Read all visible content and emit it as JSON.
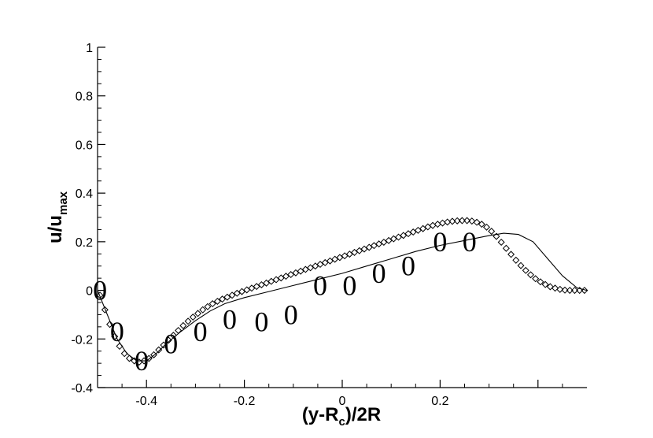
{
  "chart_data": {
    "type": "line",
    "title": "",
    "xlabel": {
      "main": "(y-R",
      "sub": "c",
      "tail": ")/2R"
    },
    "ylabel": {
      "main": "u/u",
      "sub": "max"
    },
    "xlim": [
      -0.5,
      0.5
    ],
    "ylim": [
      -0.4,
      1.0
    ],
    "x_ticks": [
      -0.4,
      -0.2,
      0,
      0.2,
      0.4
    ],
    "x_tick_labels": [
      "-0.4",
      "-0.2",
      "0",
      "0.2",
      ""
    ],
    "y_ticks": [
      -0.4,
      -0.2,
      0,
      0.2,
      0.4,
      0.6,
      0.8,
      1.0
    ],
    "y_tick_labels": [
      "-0.4",
      "-0.2",
      "0",
      "0.2",
      "0.4",
      "0.6",
      "0.8",
      "1"
    ],
    "grid": false,
    "legend": "none",
    "series": [
      {
        "style": "solid-line",
        "color": "#000000",
        "x": [
          -0.5,
          -0.48,
          -0.46,
          -0.44,
          -0.42,
          -0.4,
          -0.38,
          -0.36,
          -0.33,
          -0.3,
          -0.27,
          -0.24,
          -0.2,
          -0.15,
          -0.1,
          -0.05,
          0.0,
          0.05,
          0.1,
          0.15,
          0.2,
          0.25,
          0.3,
          0.33,
          0.36,
          0.39,
          0.42,
          0.45,
          0.48,
          0.5
        ],
        "y": [
          0.0,
          -0.1,
          -0.2,
          -0.26,
          -0.29,
          -0.29,
          -0.26,
          -0.22,
          -0.17,
          -0.125,
          -0.085,
          -0.055,
          -0.03,
          -0.005,
          0.02,
          0.045,
          0.07,
          0.1,
          0.13,
          0.16,
          0.185,
          0.205,
          0.225,
          0.235,
          0.23,
          0.2,
          0.13,
          0.06,
          0.01,
          0.0
        ]
      },
      {
        "style": "diamond-markers",
        "color": "#000000",
        "x": [
          -0.495,
          -0.485,
          -0.475,
          -0.465,
          -0.455,
          -0.445,
          -0.435,
          -0.425,
          -0.415,
          -0.405,
          -0.395,
          -0.385,
          -0.375,
          -0.365,
          -0.355,
          -0.345,
          -0.335,
          -0.325,
          -0.315,
          -0.305,
          -0.295,
          -0.285,
          -0.275,
          -0.265,
          -0.255,
          -0.245,
          -0.235,
          -0.225,
          -0.215,
          -0.205,
          -0.195,
          -0.185,
          -0.175,
          -0.165,
          -0.155,
          -0.145,
          -0.135,
          -0.125,
          -0.115,
          -0.105,
          -0.095,
          -0.085,
          -0.075,
          -0.065,
          -0.055,
          -0.045,
          -0.035,
          -0.025,
          -0.015,
          -0.005,
          0.005,
          0.015,
          0.025,
          0.035,
          0.045,
          0.055,
          0.065,
          0.075,
          0.085,
          0.095,
          0.105,
          0.115,
          0.125,
          0.135,
          0.145,
          0.155,
          0.165,
          0.175,
          0.185,
          0.195,
          0.205,
          0.215,
          0.225,
          0.235,
          0.245,
          0.255,
          0.265,
          0.275,
          0.285,
          0.295,
          0.305,
          0.315,
          0.325,
          0.335,
          0.345,
          0.355,
          0.365,
          0.375,
          0.385,
          0.395,
          0.405,
          0.415,
          0.425,
          0.435,
          0.445,
          0.455,
          0.465,
          0.475,
          0.485,
          0.495
        ],
        "y": [
          -0.02,
          -0.08,
          -0.14,
          -0.19,
          -0.23,
          -0.26,
          -0.28,
          -0.29,
          -0.295,
          -0.29,
          -0.28,
          -0.265,
          -0.245,
          -0.225,
          -0.205,
          -0.185,
          -0.165,
          -0.145,
          -0.127,
          -0.11,
          -0.095,
          -0.08,
          -0.067,
          -0.055,
          -0.045,
          -0.036,
          -0.028,
          -0.02,
          -0.012,
          -0.005,
          0.002,
          0.009,
          0.016,
          0.023,
          0.03,
          0.037,
          0.044,
          0.051,
          0.058,
          0.065,
          0.072,
          0.079,
          0.086,
          0.093,
          0.1,
          0.107,
          0.114,
          0.121,
          0.128,
          0.135,
          0.142,
          0.149,
          0.156,
          0.163,
          0.17,
          0.177,
          0.184,
          0.191,
          0.198,
          0.205,
          0.212,
          0.219,
          0.226,
          0.233,
          0.24,
          0.247,
          0.254,
          0.261,
          0.267,
          0.272,
          0.277,
          0.281,
          0.284,
          0.286,
          0.287,
          0.287,
          0.285,
          0.28,
          0.272,
          0.26,
          0.243,
          0.222,
          0.198,
          0.173,
          0.148,
          0.124,
          0.102,
          0.082,
          0.064,
          0.048,
          0.035,
          0.024,
          0.015,
          0.009,
          0.004,
          0.001,
          0.0,
          0.0,
          0.0,
          0.0
        ]
      },
      {
        "style": "zero-glyph-markers",
        "glyph": "0",
        "color": "#000000",
        "x": [
          -0.495,
          -0.46,
          -0.41,
          -0.35,
          -0.29,
          -0.23,
          -0.165,
          -0.105,
          -0.045,
          0.015,
          0.075,
          0.135,
          0.2,
          0.26
        ],
        "y": [
          0.0,
          -0.17,
          -0.29,
          -0.22,
          -0.17,
          -0.12,
          -0.13,
          -0.1,
          0.02,
          0.02,
          0.07,
          0.1,
          0.2,
          0.2
        ]
      }
    ]
  }
}
